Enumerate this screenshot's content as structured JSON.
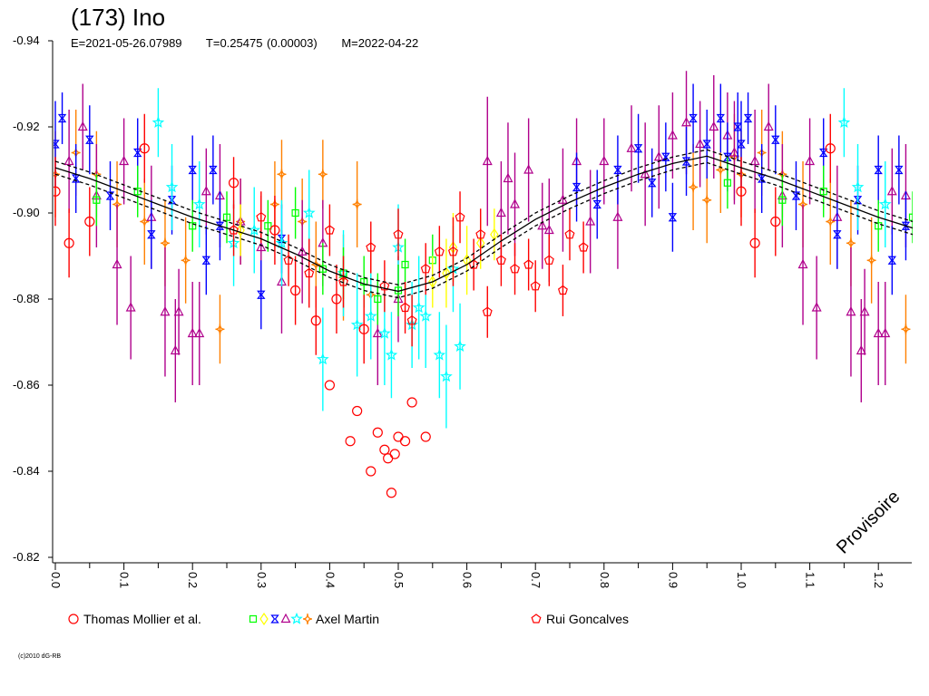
{
  "chart_data": {
    "type": "scatter",
    "title": "(173) Ino",
    "subtitle": {
      "epoch": "E=2021-05-26.07989",
      "period": "T=0.25475 (0.00003)",
      "modified": "M=2022-04-22"
    },
    "xlabel": "",
    "ylabel": "",
    "xlim": [
      0.0,
      1.25
    ],
    "ylim": [
      -0.94,
      -0.82
    ],
    "y_inverted": true,
    "xticks": [
      "0.0",
      "0.1",
      "0.2",
      "0.3",
      "0.4",
      "0.5",
      "0.6",
      "0.7",
      "0.8",
      "0.9",
      "1.0",
      "1.1",
      "1.2"
    ],
    "yticks": [
      "-0.94",
      "-0.92",
      "-0.90",
      "-0.88",
      "-0.86",
      "-0.84",
      "-0.82"
    ],
    "grid": false,
    "watermark": "Provisoire",
    "fit_curve": {
      "x": [
        0.0,
        0.05,
        0.1,
        0.15,
        0.2,
        0.25,
        0.3,
        0.35,
        0.4,
        0.45,
        0.5,
        0.55,
        0.6,
        0.65,
        0.7,
        0.75,
        0.8,
        0.85,
        0.9,
        0.95,
        1.0
      ],
      "y": [
        -0.9105,
        -0.908,
        -0.905,
        -0.902,
        -0.899,
        -0.8965,
        -0.894,
        -0.8905,
        -0.8865,
        -0.8835,
        -0.8818,
        -0.884,
        -0.888,
        -0.8935,
        -0.8985,
        -0.9025,
        -0.906,
        -0.909,
        -0.9115,
        -0.9132,
        -0.9105
      ],
      "band": 0.0015
    },
    "series": [
      {
        "name": "Thomas Mollier et al.",
        "marker": "circle",
        "color": "#ff0000",
        "points": [
          [
            0.0,
            -0.905,
            0.008
          ],
          [
            0.02,
            -0.893,
            0.008
          ],
          [
            0.05,
            -0.898,
            0.008
          ],
          [
            0.13,
            -0.915,
            0.008
          ],
          [
            0.26,
            -0.907,
            0.006
          ],
          [
            0.32,
            -0.896,
            0.008
          ],
          [
            0.35,
            -0.882,
            0.008
          ],
          [
            0.38,
            -0.875,
            0.008
          ],
          [
            0.4,
            -0.86,
            0
          ],
          [
            0.41,
            -0.88,
            0.008
          ],
          [
            0.43,
            -0.847,
            0
          ],
          [
            0.44,
            -0.854,
            0
          ],
          [
            0.45,
            -0.873,
            0.008
          ],
          [
            0.46,
            -0.84,
            0
          ],
          [
            0.47,
            -0.849,
            0
          ],
          [
            0.48,
            -0.845,
            0
          ],
          [
            0.485,
            -0.843,
            0
          ],
          [
            0.49,
            -0.835,
            0
          ],
          [
            0.495,
            -0.844,
            0
          ],
          [
            0.5,
            -0.848,
            0
          ],
          [
            0.51,
            -0.847,
            0
          ],
          [
            0.52,
            -0.856,
            0
          ],
          [
            0.54,
            -0.848,
            0
          ]
        ]
      },
      {
        "name": "Axel Martin",
        "marker": "square",
        "color": "#00ff00",
        "points": [
          [
            0.06,
            -0.903,
            0.006
          ],
          [
            0.12,
            -0.905,
            0.006
          ],
          [
            0.2,
            -0.897,
            0.006
          ],
          [
            0.25,
            -0.899,
            0.006
          ],
          [
            0.31,
            -0.897,
            0.006
          ],
          [
            0.35,
            -0.9,
            0.006
          ],
          [
            0.39,
            -0.887,
            0.006
          ],
          [
            0.42,
            -0.886,
            0.006
          ],
          [
            0.45,
            -0.884,
            0.006
          ],
          [
            0.47,
            -0.88,
            0.006
          ],
          [
            0.5,
            -0.882,
            0.006
          ],
          [
            0.51,
            -0.888,
            0.006
          ],
          [
            0.55,
            -0.889,
            0.006
          ],
          [
            0.98,
            -0.907,
            0.006
          ]
        ]
      },
      {
        "name": "Axel Martin",
        "marker": "diamond",
        "color": "#ffff00",
        "points": [
          [
            0.27,
            -0.896,
            0.006
          ],
          [
            0.55,
            -0.884,
            0.006
          ],
          [
            0.57,
            -0.886,
            0.008
          ],
          [
            0.58,
            -0.892,
            0.008
          ],
          [
            0.6,
            -0.889,
            0.008
          ],
          [
            0.62,
            -0.893,
            0.006
          ],
          [
            0.64,
            -0.895,
            0.006
          ]
        ]
      },
      {
        "name": "Axel Martin",
        "marker": "hourglass",
        "color": "#0000ff",
        "points": [
          [
            0.0,
            -0.916,
            0.01
          ],
          [
            0.01,
            -0.922,
            0.006
          ],
          [
            0.03,
            -0.908,
            0.008
          ],
          [
            0.05,
            -0.917,
            0.008
          ],
          [
            0.08,
            -0.904,
            0.008
          ],
          [
            0.12,
            -0.914,
            0.008
          ],
          [
            0.14,
            -0.895,
            0.008
          ],
          [
            0.17,
            -0.903,
            0.008
          ],
          [
            0.2,
            -0.91,
            0.008
          ],
          [
            0.22,
            -0.889,
            0.008
          ],
          [
            0.23,
            -0.91,
            0.008
          ],
          [
            0.24,
            -0.897,
            0.008
          ],
          [
            0.3,
            -0.881,
            0.008
          ],
          [
            0.33,
            -0.894,
            0.008
          ],
          [
            0.76,
            -0.906,
            0.008
          ],
          [
            0.79,
            -0.902,
            0.008
          ],
          [
            0.82,
            -0.91,
            0.008
          ],
          [
            0.85,
            -0.915,
            0.008
          ],
          [
            0.87,
            -0.907,
            0.008
          ],
          [
            0.89,
            -0.913,
            0.008
          ],
          [
            0.9,
            -0.899,
            0.008
          ],
          [
            0.92,
            -0.912,
            0.008
          ],
          [
            0.93,
            -0.922,
            0.008
          ],
          [
            0.95,
            -0.916,
            0.008
          ],
          [
            0.97,
            -0.922,
            0.008
          ],
          [
            0.98,
            -0.913,
            0.008
          ],
          [
            0.995,
            -0.92,
            0.008
          ]
        ]
      },
      {
        "name": "Axel Martin",
        "marker": "triangle",
        "color": "#b0008c",
        "points": [
          [
            0.02,
            -0.912,
            0.012
          ],
          [
            0.04,
            -0.92,
            0.01
          ],
          [
            0.06,
            -0.904,
            0.012
          ],
          [
            0.09,
            -0.888,
            0.014
          ],
          [
            0.1,
            -0.912,
            0.01
          ],
          [
            0.11,
            -0.878,
            0.012
          ],
          [
            0.14,
            -0.899,
            0.012
          ],
          [
            0.16,
            -0.877,
            0.015
          ],
          [
            0.175,
            -0.868,
            0.012
          ],
          [
            0.18,
            -0.877,
            0.01
          ],
          [
            0.2,
            -0.872,
            0.012
          ],
          [
            0.21,
            -0.872,
            0.012
          ],
          [
            0.22,
            -0.905,
            0.01
          ],
          [
            0.24,
            -0.904,
            0.012
          ],
          [
            0.27,
            -0.898,
            0.01
          ],
          [
            0.3,
            -0.892,
            0.012
          ],
          [
            0.33,
            -0.884,
            0.012
          ],
          [
            0.36,
            -0.891,
            0.012
          ],
          [
            0.39,
            -0.893,
            0.01
          ],
          [
            0.47,
            -0.872,
            0.012
          ],
          [
            0.5,
            -0.88,
            0.01
          ],
          [
            0.63,
            -0.912,
            0.015
          ],
          [
            0.65,
            -0.9,
            0.012
          ],
          [
            0.66,
            -0.908,
            0.013
          ],
          [
            0.67,
            -0.902,
            0.012
          ],
          [
            0.69,
            -0.91,
            0.012
          ],
          [
            0.71,
            -0.897,
            0.01
          ],
          [
            0.72,
            -0.896,
            0.012
          ],
          [
            0.74,
            -0.903,
            0.012
          ],
          [
            0.76,
            -0.912,
            0.01
          ],
          [
            0.78,
            -0.898,
            0.012
          ],
          [
            0.8,
            -0.912,
            0.01
          ],
          [
            0.82,
            -0.899,
            0.012
          ],
          [
            0.84,
            -0.915,
            0.01
          ],
          [
            0.86,
            -0.909,
            0.012
          ],
          [
            0.88,
            -0.913,
            0.012
          ],
          [
            0.9,
            -0.918,
            0.01
          ],
          [
            0.92,
            -0.921,
            0.012
          ],
          [
            0.94,
            -0.916,
            0.01
          ],
          [
            0.96,
            -0.92,
            0.012
          ],
          [
            0.98,
            -0.918,
            0.01
          ],
          [
            0.99,
            -0.914,
            0.012
          ]
        ]
      },
      {
        "name": "Axel Martin",
        "marker": "star",
        "color": "#00ffff",
        "points": [
          [
            0.15,
            -0.921,
            0.008
          ],
          [
            0.17,
            -0.906,
            0.01
          ],
          [
            0.21,
            -0.902,
            0.01
          ],
          [
            0.26,
            -0.893,
            0.01
          ],
          [
            0.29,
            -0.896,
            0.01
          ],
          [
            0.33,
            -0.893,
            0.01
          ],
          [
            0.37,
            -0.9,
            0.01
          ],
          [
            0.39,
            -0.866,
            0.012
          ],
          [
            0.42,
            -0.886,
            0.01
          ],
          [
            0.44,
            -0.874,
            0.012
          ],
          [
            0.46,
            -0.876,
            0.01
          ],
          [
            0.48,
            -0.872,
            0.012
          ],
          [
            0.49,
            -0.867,
            0.01
          ],
          [
            0.5,
            -0.892,
            0.01
          ],
          [
            0.52,
            -0.874,
            0.01
          ],
          [
            0.53,
            -0.878,
            0.012
          ],
          [
            0.54,
            -0.876,
            0.012
          ],
          [
            0.56,
            -0.867,
            0.01
          ],
          [
            0.57,
            -0.862,
            0.012
          ],
          [
            0.58,
            -0.887,
            0.01
          ],
          [
            0.59,
            -0.869,
            0.01
          ]
        ]
      },
      {
        "name": "Axel Martin",
        "marker": "star4",
        "color": "#ff8000",
        "points": [
          [
            0.0,
            -0.909,
            0.01
          ],
          [
            0.03,
            -0.914,
            0.01
          ],
          [
            0.06,
            -0.909,
            0.01
          ],
          [
            0.09,
            -0.902,
            0.01
          ],
          [
            0.13,
            -0.898,
            0.01
          ],
          [
            0.16,
            -0.893,
            0.01
          ],
          [
            0.19,
            -0.889,
            0.01
          ],
          [
            0.24,
            -0.873,
            0.008
          ],
          [
            0.27,
            -0.898,
            0.01
          ],
          [
            0.32,
            -0.902,
            0.01
          ],
          [
            0.33,
            -0.909,
            0.008
          ],
          [
            0.36,
            -0.898,
            0.01
          ],
          [
            0.38,
            -0.888,
            0.01
          ],
          [
            0.39,
            -0.909,
            0.008
          ],
          [
            0.42,
            -0.885,
            0.01
          ],
          [
            0.44,
            -0.902,
            0.01
          ],
          [
            0.46,
            -0.881,
            0.01
          ],
          [
            0.93,
            -0.906,
            0.01
          ],
          [
            0.95,
            -0.903,
            0.01
          ],
          [
            0.97,
            -0.91,
            0.01
          ],
          [
            0.99,
            -0.913,
            0.01
          ]
        ]
      },
      {
        "name": "Rui Goncalves",
        "marker": "pentagon",
        "color": "#ff0000",
        "points": [
          [
            0.26,
            -0.896,
            0.006
          ],
          [
            0.3,
            -0.899,
            0.006
          ],
          [
            0.34,
            -0.889,
            0.006
          ],
          [
            0.37,
            -0.886,
            0.008
          ],
          [
            0.4,
            -0.896,
            0.006
          ],
          [
            0.42,
            -0.884,
            0.006
          ],
          [
            0.46,
            -0.892,
            0.006
          ],
          [
            0.48,
            -0.883,
            0.006
          ],
          [
            0.5,
            -0.895,
            0.006
          ],
          [
            0.51,
            -0.878,
            0.006
          ],
          [
            0.52,
            -0.875,
            0.006
          ],
          [
            0.54,
            -0.887,
            0.006
          ],
          [
            0.56,
            -0.891,
            0.006
          ],
          [
            0.58,
            -0.891,
            0.008
          ],
          [
            0.59,
            -0.899,
            0.006
          ],
          [
            0.61,
            -0.888,
            0.006
          ],
          [
            0.62,
            -0.895,
            0.006
          ],
          [
            0.63,
            -0.877,
            0.006
          ],
          [
            0.65,
            -0.889,
            0.006
          ],
          [
            0.67,
            -0.887,
            0.006
          ],
          [
            0.69,
            -0.888,
            0.006
          ],
          [
            0.7,
            -0.883,
            0.006
          ],
          [
            0.72,
            -0.889,
            0.006
          ],
          [
            0.74,
            -0.882,
            0.006
          ],
          [
            0.75,
            -0.895,
            0.006
          ],
          [
            0.77,
            -0.892,
            0.006
          ]
        ]
      }
    ],
    "legend": [
      {
        "label": "Thomas Mollier et al.",
        "markers": [
          "circle"
        ],
        "colors": [
          "#ff0000"
        ]
      },
      {
        "label": "Axel Martin",
        "markers": [
          "square",
          "diamond",
          "hourglass",
          "triangle",
          "star",
          "star4"
        ],
        "colors": [
          "#00ff00",
          "#ffff00",
          "#0000ff",
          "#b0008c",
          "#00ffff",
          "#ff8000"
        ]
      },
      {
        "label": "Rui Goncalves",
        "markers": [
          "pentagon"
        ],
        "colors": [
          "#ff0000"
        ]
      }
    ],
    "legend_placement": "bottom"
  },
  "copyright": "(c)2010 dG-RB"
}
